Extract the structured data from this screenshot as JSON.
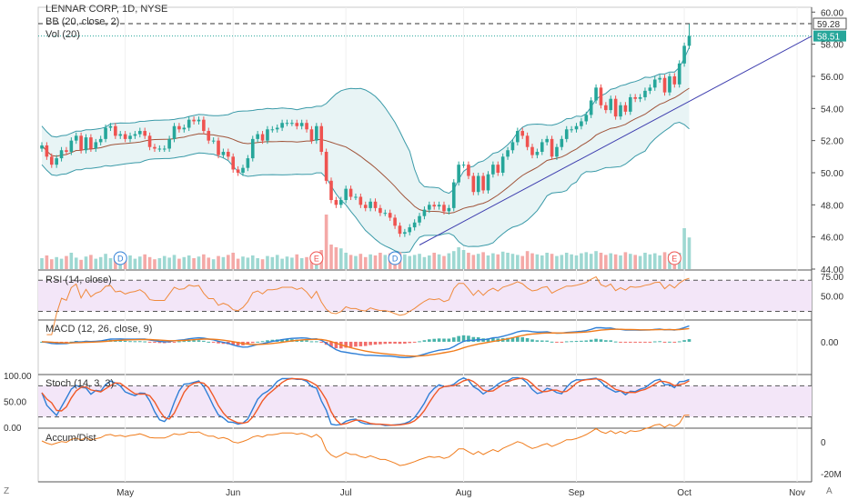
{
  "header": {
    "title": "LENNAR CORP, 1D, NYSE",
    "bb_label": "BB (20, close, 2)",
    "vol_label": "Vol (20)"
  },
  "panes": {
    "rsi_label": "RSI (14, close)",
    "macd_label": "MACD (12, 26, close, 9)",
    "stoch_label": "Stoch (14, 3, 3)",
    "ad_label": "Accum/Dist"
  },
  "corners": {
    "bottom_left": "Z",
    "bottom_right": "A"
  },
  "colors": {
    "up": "#26a69a",
    "down": "#ef5350",
    "bb_band": "#3a9aa8",
    "bb_basis": "#a0543a",
    "bb_fill": "#e8f4f5",
    "trend": "#3f3faf",
    "rsi_line": "#f08a3c",
    "rsi_fill": "#f3e6f8",
    "macd_line": "#2f7fd6",
    "signal_line": "#f07c1c",
    "stoch_k": "#2f7fd6",
    "stoch_d": "#f05a28",
    "ad_line": "#f07c1c"
  },
  "chart_data": {
    "type": "candlestick",
    "title": "LENNAR CORP, 1D, NYSE",
    "x_ticks": [
      "May",
      "Jun",
      "Jul",
      "Aug",
      "Sep",
      "Oct",
      "Nov"
    ],
    "price_axis": {
      "ticks": [
        "60.00",
        "58.00",
        "56.00",
        "54.00",
        "52.00",
        "50.00",
        "48.00",
        "46.00",
        "44.00"
      ],
      "ylim": [
        44,
        60.3
      ]
    },
    "price_labels": [
      {
        "value": 59.28,
        "text": "59.28",
        "color": "#333333"
      },
      {
        "value": 58.51,
        "text": "58.51",
        "color": "#26a69a"
      }
    ],
    "candles": {
      "open": [
        51.5,
        51.7,
        51.0,
        50.5,
        50.9,
        51.4,
        51.3,
        52.0,
        52.3,
        51.4,
        52.2,
        51.5,
        51.9,
        52.1,
        52.8,
        52.9,
        52.3,
        52.4,
        52.1,
        52.3,
        52.4,
        52.6,
        52.3,
        51.6,
        51.5,
        51.5,
        51.5,
        52.1,
        52.9,
        52.7,
        52.8,
        53.3,
        53.2,
        53.3,
        52.6,
        52.0,
        52.0,
        51.1,
        51.3,
        51.0,
        50.2,
        50.0,
        50.3,
        50.9,
        52.1,
        52.4,
        52.0,
        52.7,
        52.7,
        52.8,
        53.1,
        53.1,
        53.1,
        52.9,
        53.1,
        52.7,
        52.0,
        52.9,
        51.3,
        49.5,
        48.3,
        48.0,
        48.3,
        49.0,
        48.5,
        48.5,
        48.0,
        47.8,
        48.2,
        47.8,
        47.5,
        47.5,
        47.2,
        46.7,
        46.2,
        46.3,
        46.6,
        46.9,
        47.3,
        47.7,
        48.0,
        47.9,
        48.0,
        47.6,
        47.8,
        49.4,
        50.5,
        50.5,
        49.8,
        48.8,
        49.8,
        48.9,
        49.9,
        50.5,
        50.0,
        51.0,
        51.4,
        51.9,
        52.6,
        52.3,
        51.6,
        51.1,
        51.3,
        51.9,
        52.1,
        51.0,
        51.6,
        52.1,
        52.7,
        52.7,
        52.9,
        53.2,
        53.6,
        54.5,
        55.3,
        54.2,
        53.9,
        54.6,
        53.5,
        54.2,
        53.8,
        54.7,
        54.6,
        54.7,
        55.1,
        55.3,
        55.8,
        55.9,
        55.0,
        56.0,
        55.5,
        56.8,
        57.9
      ],
      "close": [
        51.7,
        51.0,
        50.5,
        50.9,
        51.4,
        51.3,
        52.0,
        52.3,
        51.4,
        52.2,
        51.5,
        51.9,
        52.1,
        52.8,
        52.9,
        52.3,
        52.4,
        52.1,
        52.3,
        52.4,
        52.6,
        52.3,
        51.6,
        51.5,
        51.5,
        51.5,
        52.1,
        52.9,
        52.7,
        52.8,
        53.3,
        53.2,
        53.3,
        52.6,
        52.0,
        52.0,
        51.1,
        51.3,
        51.0,
        50.2,
        50.0,
        50.3,
        50.9,
        52.1,
        52.4,
        52.0,
        52.7,
        52.7,
        52.8,
        53.1,
        53.1,
        53.1,
        52.9,
        53.1,
        52.7,
        52.0,
        52.9,
        51.3,
        49.5,
        48.3,
        48.0,
        48.3,
        49.0,
        48.5,
        48.5,
        48.0,
        47.8,
        48.2,
        47.8,
        47.5,
        47.5,
        47.2,
        46.7,
        46.2,
        46.3,
        46.6,
        46.9,
        47.3,
        47.7,
        48.0,
        47.9,
        48.0,
        47.6,
        47.8,
        49.4,
        50.5,
        50.5,
        49.8,
        48.8,
        49.8,
        48.9,
        49.9,
        50.5,
        50.0,
        51.0,
        51.4,
        51.9,
        52.6,
        52.3,
        51.6,
        51.1,
        51.3,
        51.9,
        52.1,
        51.0,
        51.6,
        52.1,
        52.7,
        52.7,
        52.9,
        53.2,
        53.6,
        54.5,
        55.3,
        54.2,
        53.9,
        54.6,
        53.5,
        54.2,
        53.8,
        54.7,
        54.6,
        54.7,
        55.1,
        55.3,
        55.8,
        55.9,
        55.0,
        56.0,
        55.5,
        56.8,
        57.9,
        58.51
      ],
      "high": [
        51.9,
        51.9,
        51.2,
        51.1,
        51.6,
        51.6,
        52.2,
        52.5,
        52.5,
        52.4,
        52.4,
        52.1,
        52.3,
        53.0,
        53.1,
        53.1,
        52.6,
        52.6,
        52.5,
        52.6,
        52.8,
        52.8,
        52.5,
        51.8,
        51.7,
        51.7,
        52.3,
        53.1,
        53.1,
        53.0,
        53.5,
        53.5,
        53.5,
        53.5,
        52.8,
        52.2,
        52.2,
        51.5,
        51.5,
        51.2,
        50.4,
        50.5,
        51.1,
        52.3,
        52.6,
        52.6,
        52.9,
        52.9,
        53.0,
        53.3,
        53.3,
        53.3,
        53.3,
        53.3,
        53.3,
        52.9,
        53.1,
        53.1,
        51.5,
        49.7,
        48.5,
        48.5,
        49.2,
        49.2,
        48.7,
        48.7,
        48.2,
        48.4,
        48.4,
        48.0,
        47.7,
        47.7,
        47.4,
        46.9,
        46.5,
        46.8,
        47.1,
        47.5,
        47.9,
        48.2,
        48.2,
        48.2,
        48.2,
        48.0,
        49.6,
        50.7,
        50.7,
        50.7,
        50.0,
        50.0,
        50.0,
        50.1,
        50.7,
        50.7,
        51.2,
        51.6,
        52.1,
        52.8,
        52.8,
        52.5,
        51.8,
        51.5,
        52.1,
        52.3,
        52.3,
        51.8,
        52.3,
        52.9,
        52.9,
        53.1,
        53.4,
        53.8,
        54.7,
        55.5,
        55.5,
        54.4,
        54.8,
        54.8,
        54.4,
        54.4,
        54.9,
        54.9,
        54.9,
        55.3,
        55.5,
        56.0,
        56.1,
        56.1,
        56.2,
        56.2,
        57.0,
        58.1,
        59.28
      ],
      "low": [
        51.3,
        50.8,
        50.3,
        50.3,
        50.7,
        51.1,
        51.1,
        51.8,
        51.2,
        51.2,
        51.3,
        51.3,
        51.7,
        51.9,
        52.6,
        52.1,
        52.1,
        51.9,
        51.9,
        52.1,
        52.2,
        52.1,
        51.4,
        51.3,
        51.3,
        51.3,
        51.3,
        51.9,
        52.5,
        52.5,
        52.6,
        53.0,
        53.0,
        52.4,
        51.8,
        51.8,
        50.9,
        50.9,
        50.8,
        50.0,
        49.8,
        49.8,
        50.1,
        50.7,
        51.9,
        51.8,
        51.8,
        52.5,
        52.5,
        52.6,
        52.9,
        52.9,
        52.7,
        52.7,
        52.5,
        51.8,
        51.8,
        51.1,
        49.3,
        48.1,
        47.8,
        47.8,
        48.1,
        48.3,
        48.3,
        47.8,
        47.6,
        47.6,
        47.6,
        47.3,
        47.3,
        47.0,
        46.5,
        46.0,
        46.0,
        46.1,
        46.4,
        46.7,
        47.1,
        47.5,
        47.7,
        47.7,
        47.4,
        47.4,
        47.6,
        49.2,
        50.3,
        49.6,
        48.6,
        48.6,
        48.7,
        48.7,
        49.7,
        49.8,
        49.8,
        50.8,
        51.2,
        51.7,
        52.1,
        51.4,
        50.9,
        50.9,
        51.1,
        51.7,
        50.8,
        50.8,
        51.4,
        51.9,
        52.5,
        52.5,
        52.7,
        53.0,
        53.4,
        54.3,
        54.0,
        53.7,
        53.7,
        53.3,
        53.3,
        53.6,
        53.6,
        54.4,
        54.4,
        54.5,
        54.9,
        55.1,
        55.6,
        54.8,
        54.8,
        55.3,
        55.3,
        56.6,
        57.7
      ],
      "volume": [
        20,
        25,
        18,
        22,
        19,
        24,
        30,
        21,
        17,
        23,
        26,
        19,
        22,
        28,
        20,
        18,
        24,
        21,
        25,
        19,
        23,
        27,
        22,
        18,
        20,
        24,
        21,
        26,
        19,
        22,
        25,
        20,
        23,
        27,
        21,
        18,
        24,
        22,
        26,
        30,
        19,
        23,
        21,
        25,
        20,
        18,
        24,
        22,
        26,
        19,
        23,
        21,
        27,
        20,
        22,
        25,
        28,
        35,
        100,
        45,
        40,
        38,
        30,
        26,
        24,
        28,
        22,
        27,
        25,
        30,
        26,
        29,
        23,
        31,
        27,
        24,
        26,
        28,
        22,
        25,
        30,
        27,
        24,
        29,
        33,
        40,
        35,
        30,
        26,
        28,
        31,
        25,
        29,
        27,
        32,
        30,
        28,
        26,
        24,
        33,
        29,
        27,
        25,
        30,
        28,
        24,
        26,
        30,
        27,
        25,
        29,
        31,
        28,
        33,
        30,
        26,
        29,
        27,
        25,
        31,
        28,
        26,
        24,
        30,
        27,
        29,
        25,
        31,
        28,
        26,
        30,
        75,
        58
      ]
    },
    "event_markers": [
      {
        "type": "D",
        "index": 16
      },
      {
        "type": "E",
        "index": 56
      },
      {
        "type": "D",
        "index": 72
      },
      {
        "type": "E",
        "index": 129
      }
    ],
    "indicators": {
      "rsi": {
        "name": "RSI (14, close)",
        "ticks": [
          "75.00",
          "50.00"
        ],
        "ylim": [
          20,
          82
        ],
        "bands": [
          70,
          30
        ]
      },
      "macd": {
        "name": "MACD (12, 26, close, 9)",
        "ticks": [
          "0.00"
        ],
        "ylim": [
          -2.6,
          1.7
        ]
      },
      "stoch": {
        "name": "Stoch (14, 3, 3)",
        "ticks": [
          "100.00",
          "50.00",
          "0.00"
        ],
        "ylim": [
          0,
          100
        ],
        "bands": [
          80,
          20
        ]
      },
      "accum_dist": {
        "name": "Accum/Dist",
        "ticks": [
          "0",
          "-20M"
        ],
        "ylim": [
          -25,
          8
        ]
      }
    }
  }
}
